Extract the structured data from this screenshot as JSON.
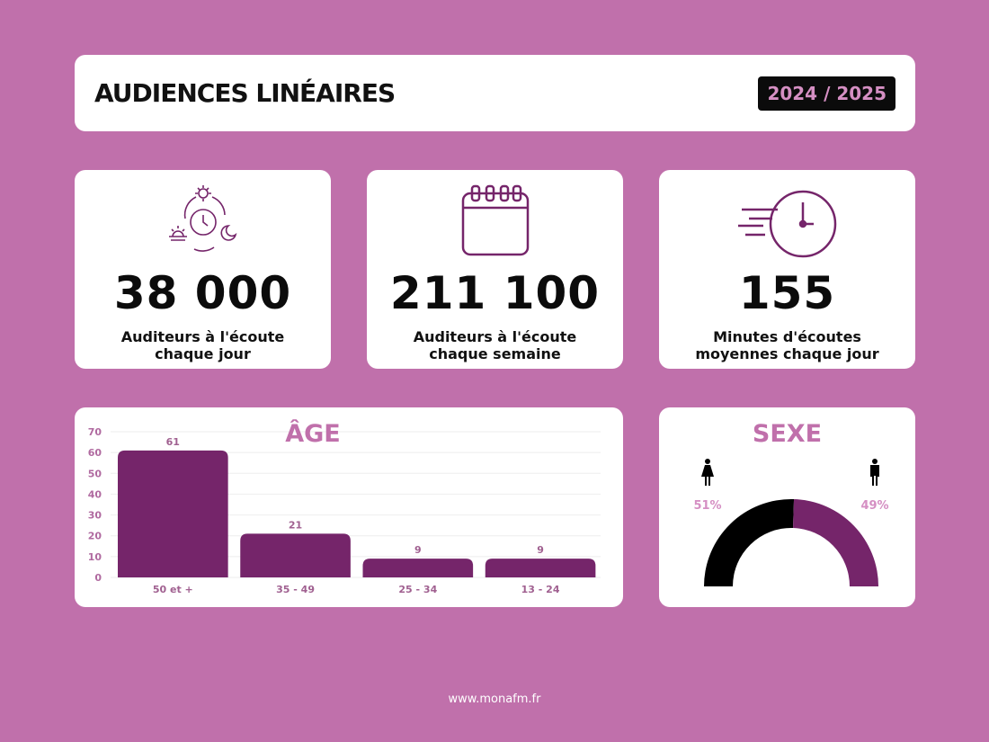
{
  "header": {
    "title": "AUDIENCES LINÉAIRES",
    "period": "2024 / 2025"
  },
  "stats": [
    {
      "icon": "day-night-cycle-icon",
      "value": "38 000",
      "label_line1": "Auditeurs à l'écoute",
      "label_line2": "chaque jour"
    },
    {
      "icon": "calendar-icon",
      "value": "211 100",
      "label_line1": "Auditeurs à l'écoute",
      "label_line2": "chaque semaine"
    },
    {
      "icon": "fast-clock-icon",
      "value": "155",
      "label_line1": "Minutes d'écoutes",
      "label_line2": "moyennes chaque jour"
    }
  ],
  "chart_data": [
    {
      "type": "bar",
      "title": "ÂGE",
      "categories": [
        "50 et +",
        "35 - 49",
        "25 - 34",
        "13 - 24"
      ],
      "values": [
        61,
        21,
        9,
        9
      ],
      "ylim": [
        0,
        70
      ],
      "yticks": [
        "0",
        "10",
        "20",
        "30",
        "40",
        "50",
        "60",
        "70"
      ],
      "value_labels": [
        "61",
        "21",
        "9",
        "9"
      ],
      "grid": true,
      "color": "#75256a"
    },
    {
      "type": "pie",
      "subtype": "half-donut",
      "title": "SEXE",
      "categories": [
        "Femmes",
        "Hommes"
      ],
      "values": [
        51,
        49
      ],
      "value_labels": [
        "51%",
        "49%"
      ],
      "colors": [
        "#000000",
        "#75256a"
      ]
    }
  ],
  "footer": "www.monafm.fr"
}
